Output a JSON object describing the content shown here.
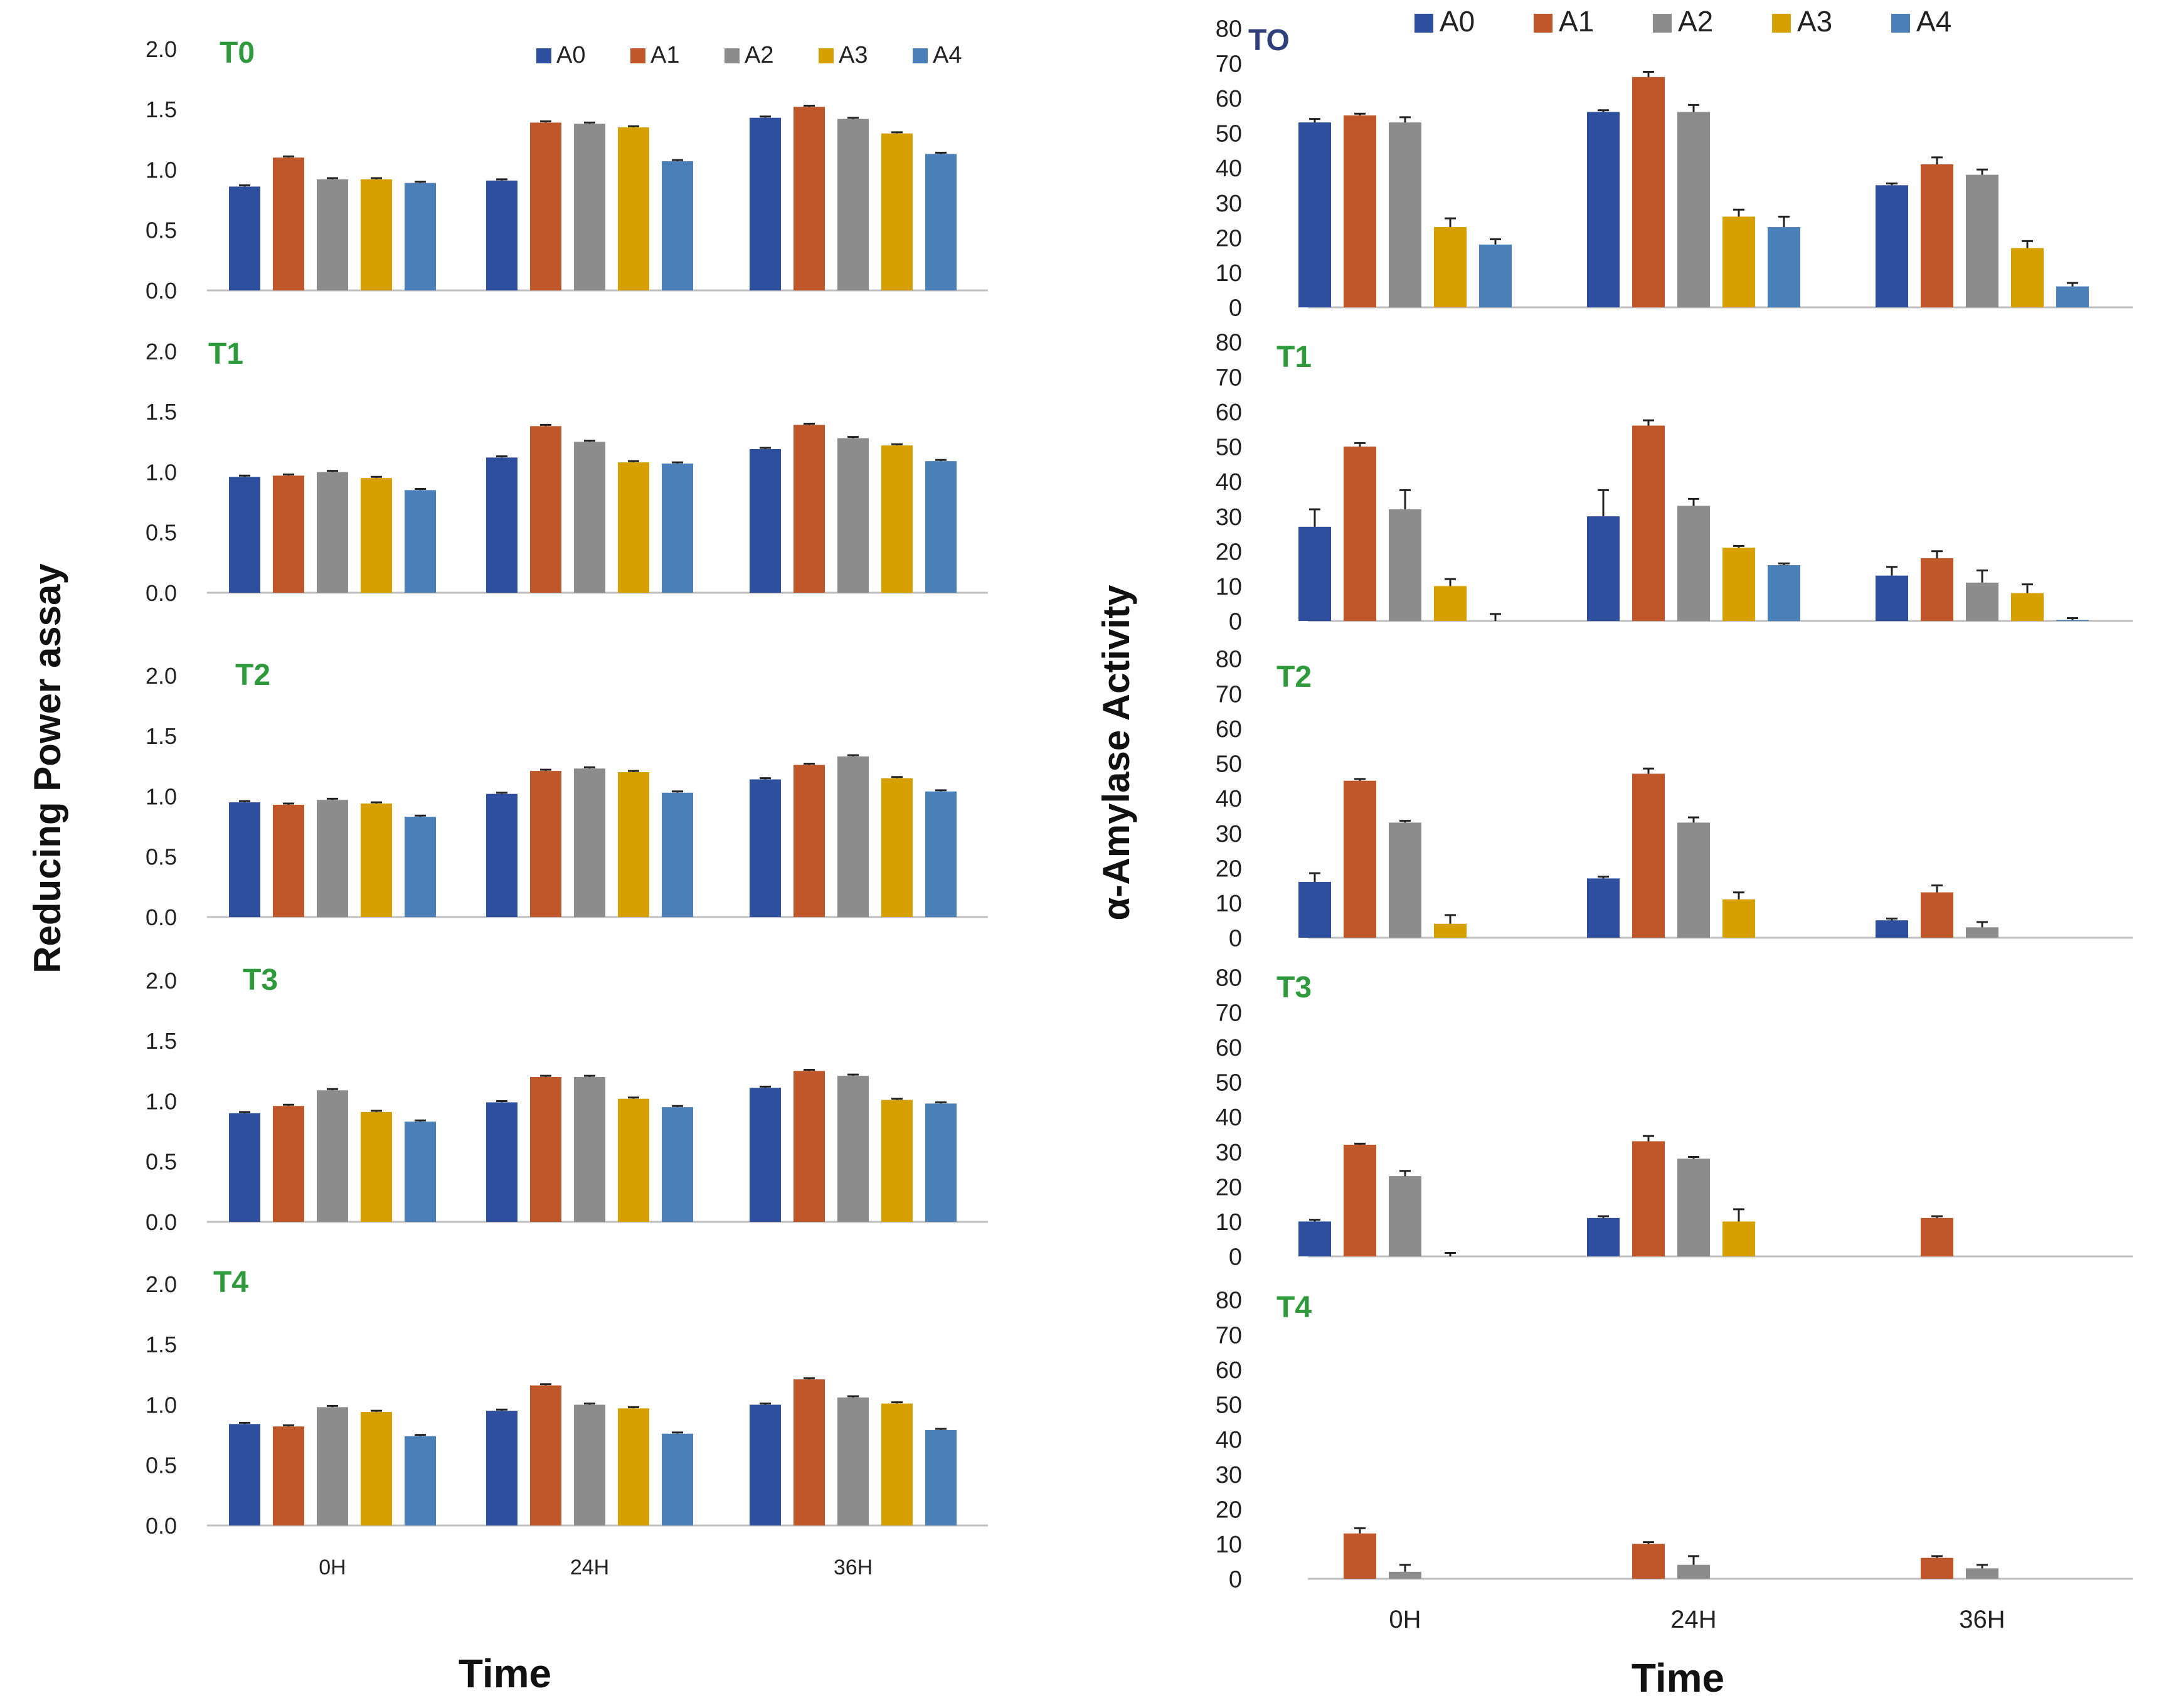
{
  "colors": {
    "A0": "#2e4f9e",
    "A1": "#c0572a",
    "A2": "#8c8c8c",
    "A3": "#d6a000",
    "A4": "#4a7fb8",
    "panel_label": "#2e9a3c",
    "panel_label_alt": "#2e3f7a",
    "axis": "#bfbfbf",
    "text": "#222222",
    "errorbar": "#222222"
  },
  "legend": [
    "A0",
    "A1",
    "A2",
    "A3",
    "A4"
  ],
  "chart_data": [
    {
      "id": "left",
      "type": "bar",
      "ylabel": "Reducing Power assay",
      "xlabel": "Time",
      "categories": [
        "0H",
        "24H",
        "36H"
      ],
      "ylim": [
        0,
        2.0
      ],
      "yticks": [
        "0.0",
        "0.5",
        "1.0",
        "1.5",
        "2.0"
      ],
      "panels": [
        {
          "label": "T0",
          "series": [
            {
              "name": "A0",
              "values": [
                0.86,
                0.91,
                1.43
              ],
              "errors": [
                0.01,
                0.01,
                0.01
              ]
            },
            {
              "name": "A1",
              "values": [
                1.1,
                1.39,
                1.52
              ],
              "errors": [
                0.01,
                0.01,
                0.01
              ]
            },
            {
              "name": "A2",
              "values": [
                0.92,
                1.38,
                1.42
              ],
              "errors": [
                0.01,
                0.01,
                0.01
              ]
            },
            {
              "name": "A3",
              "values": [
                0.92,
                1.35,
                1.3
              ],
              "errors": [
                0.01,
                0.01,
                0.01
              ]
            },
            {
              "name": "A4",
              "values": [
                0.89,
                1.07,
                1.13
              ],
              "errors": [
                0.01,
                0.01,
                0.01
              ]
            }
          ]
        },
        {
          "label": "T1",
          "series": [
            {
              "name": "A0",
              "values": [
                0.96,
                1.12,
                1.19
              ],
              "errors": [
                0.01,
                0.01,
                0.01
              ]
            },
            {
              "name": "A1",
              "values": [
                0.97,
                1.38,
                1.39
              ],
              "errors": [
                0.01,
                0.01,
                0.01
              ]
            },
            {
              "name": "A2",
              "values": [
                1.0,
                1.25,
                1.28
              ],
              "errors": [
                0.01,
                0.01,
                0.01
              ]
            },
            {
              "name": "A3",
              "values": [
                0.95,
                1.08,
                1.22
              ],
              "errors": [
                0.01,
                0.01,
                0.01
              ]
            },
            {
              "name": "A4",
              "values": [
                0.85,
                1.07,
                1.09
              ],
              "errors": [
                0.01,
                0.01,
                0.01
              ]
            }
          ]
        },
        {
          "label": "T2",
          "series": [
            {
              "name": "A0",
              "values": [
                0.95,
                1.02,
                1.14
              ],
              "errors": [
                0.01,
                0.01,
                0.01
              ]
            },
            {
              "name": "A1",
              "values": [
                0.93,
                1.21,
                1.26
              ],
              "errors": [
                0.01,
                0.01,
                0.01
              ]
            },
            {
              "name": "A2",
              "values": [
                0.97,
                1.23,
                1.33
              ],
              "errors": [
                0.01,
                0.01,
                0.01
              ]
            },
            {
              "name": "A3",
              "values": [
                0.94,
                1.2,
                1.15
              ],
              "errors": [
                0.01,
                0.01,
                0.01
              ]
            },
            {
              "name": "A4",
              "values": [
                0.83,
                1.03,
                1.04
              ],
              "errors": [
                0.01,
                0.01,
                0.01
              ]
            }
          ]
        },
        {
          "label": "T3",
          "series": [
            {
              "name": "A0",
              "values": [
                0.9,
                0.99,
                1.11
              ],
              "errors": [
                0.01,
                0.01,
                0.01
              ]
            },
            {
              "name": "A1",
              "values": [
                0.96,
                1.2,
                1.25
              ],
              "errors": [
                0.01,
                0.01,
                0.01
              ]
            },
            {
              "name": "A2",
              "values": [
                1.09,
                1.2,
                1.21
              ],
              "errors": [
                0.01,
                0.01,
                0.01
              ]
            },
            {
              "name": "A3",
              "values": [
                0.91,
                1.02,
                1.01
              ],
              "errors": [
                0.01,
                0.01,
                0.01
              ]
            },
            {
              "name": "A4",
              "values": [
                0.83,
                0.95,
                0.98
              ],
              "errors": [
                0.01,
                0.01,
                0.01
              ]
            }
          ]
        },
        {
          "label": "T4",
          "series": [
            {
              "name": "A0",
              "values": [
                0.84,
                0.95,
                1.0
              ],
              "errors": [
                0.01,
                0.01,
                0.01
              ]
            },
            {
              "name": "A1",
              "values": [
                0.82,
                1.16,
                1.21
              ],
              "errors": [
                0.01,
                0.01,
                0.01
              ]
            },
            {
              "name": "A2",
              "values": [
                0.98,
                1.0,
                1.06
              ],
              "errors": [
                0.01,
                0.01,
                0.01
              ]
            },
            {
              "name": "A3",
              "values": [
                0.94,
                0.97,
                1.01
              ],
              "errors": [
                0.01,
                0.01,
                0.01
              ]
            },
            {
              "name": "A4",
              "values": [
                0.74,
                0.76,
                0.79
              ],
              "errors": [
                0.01,
                0.01,
                0.01
              ]
            }
          ]
        }
      ]
    },
    {
      "id": "right",
      "type": "bar",
      "ylabel": "α-Amylase Activity",
      "xlabel": "Time",
      "categories": [
        "0H",
        "24H",
        "36H"
      ],
      "ylim": [
        0,
        80
      ],
      "yticks": [
        "0",
        "10",
        "20",
        "30",
        "40",
        "50",
        "60",
        "70",
        "80"
      ],
      "panels": [
        {
          "label": "TO",
          "series": [
            {
              "name": "A0",
              "values": [
                53,
                56,
                35
              ],
              "errors": [
                1,
                0.5,
                0.5
              ]
            },
            {
              "name": "A1",
              "values": [
                55,
                66,
                41
              ],
              "errors": [
                0.5,
                1.5,
                2
              ]
            },
            {
              "name": "A2",
              "values": [
                53,
                56,
                38
              ],
              "errors": [
                1.5,
                2,
                1.5
              ]
            },
            {
              "name": "A3",
              "values": [
                23,
                26,
                17
              ],
              "errors": [
                2.5,
                2,
                2
              ]
            },
            {
              "name": "A4",
              "values": [
                18,
                23,
                6
              ],
              "errors": [
                1.5,
                3,
                1
              ]
            }
          ]
        },
        {
          "label": "T1",
          "series": [
            {
              "name": "A0",
              "values": [
                27,
                30,
                13
              ],
              "errors": [
                5,
                7.5,
                2.5
              ]
            },
            {
              "name": "A1",
              "values": [
                50,
                56,
                18
              ],
              "errors": [
                1,
                1.5,
                2
              ]
            },
            {
              "name": "A2",
              "values": [
                32,
                33,
                11
              ],
              "errors": [
                5.5,
                2,
                3.5
              ]
            },
            {
              "name": "A3",
              "values": [
                10,
                21,
                8
              ],
              "errors": [
                2,
                0.5,
                2.5
              ]
            },
            {
              "name": "A4",
              "values": [
                0,
                16,
                0.3
              ],
              "errors": [
                2,
                0.5,
                0.5
              ]
            }
          ]
        },
        {
          "label": "T2",
          "series": [
            {
              "name": "A0",
              "values": [
                16,
                17,
                5
              ],
              "errors": [
                2.5,
                0.5,
                0.5
              ]
            },
            {
              "name": "A1",
              "values": [
                45,
                47,
                13
              ],
              "errors": [
                0.5,
                1.5,
                2
              ]
            },
            {
              "name": "A2",
              "values": [
                33,
                33,
                3
              ],
              "errors": [
                0.5,
                1.5,
                1.5
              ]
            },
            {
              "name": "A3",
              "values": [
                4,
                11,
                0
              ],
              "errors": [
                2.5,
                2,
                0
              ]
            },
            {
              "name": "A4",
              "values": [
                0,
                0,
                0
              ],
              "errors": [
                0,
                0,
                0
              ]
            }
          ]
        },
        {
          "label": "T3",
          "series": [
            {
              "name": "A0",
              "values": [
                10,
                11,
                0
              ],
              "errors": [
                0.5,
                0.5,
                0
              ]
            },
            {
              "name": "A1",
              "values": [
                32,
                33,
                11
              ],
              "errors": [
                0.3,
                1.5,
                0.5
              ]
            },
            {
              "name": "A2",
              "values": [
                23,
                28,
                0
              ],
              "errors": [
                1.5,
                0.5,
                0
              ]
            },
            {
              "name": "A3",
              "values": [
                0,
                10,
                0
              ],
              "errors": [
                1,
                3.5,
                0
              ]
            },
            {
              "name": "A4",
              "values": [
                0,
                0,
                0
              ],
              "errors": [
                0,
                0,
                0
              ]
            }
          ]
        },
        {
          "label": "T4",
          "series": [
            {
              "name": "A0",
              "values": [
                0,
                0,
                0
              ],
              "errors": [
                0,
                0,
                0
              ]
            },
            {
              "name": "A1",
              "values": [
                13,
                10,
                6
              ],
              "errors": [
                1.5,
                0.5,
                0.5
              ]
            },
            {
              "name": "A2",
              "values": [
                2,
                4,
                3
              ],
              "errors": [
                2,
                2.5,
                1
              ]
            },
            {
              "name": "A3",
              "values": [
                0,
                0,
                0
              ],
              "errors": [
                0,
                0,
                0
              ]
            },
            {
              "name": "A4",
              "values": [
                0,
                0,
                0
              ],
              "errors": [
                0,
                0,
                0
              ]
            }
          ]
        }
      ]
    }
  ]
}
